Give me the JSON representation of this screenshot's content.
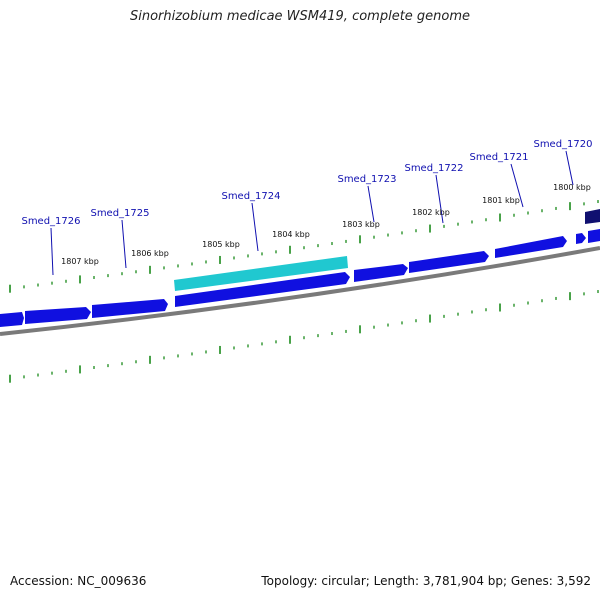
{
  "title": "Sinorhizobium medicae WSM419, complete genome",
  "accession": "Accession: NC_009636",
  "summary": "Topology: circular; Length: 3,781,904 bp; Genes: 3,592",
  "colors": {
    "gene_fill": "#1010e0",
    "gene_highlight": "#20c8d0",
    "gene_dark": "#101070",
    "backbone": "#7a7a7a",
    "tick": "#1a8a1a",
    "label": "#1010b0"
  },
  "scale": {
    "unit": "kbp",
    "ticks": [
      {
        "label": "1800 kbp"
      },
      {
        "label": "1801 kbp"
      },
      {
        "label": "1802 kbp"
      },
      {
        "label": "1803 kbp"
      },
      {
        "label": "1804 kbp"
      },
      {
        "label": "1805 kbp"
      },
      {
        "label": "1806 kbp"
      },
      {
        "label": "1807 kbp"
      }
    ]
  },
  "gene_labels": [
    {
      "name": "Smed_1720"
    },
    {
      "name": "Smed_1721"
    },
    {
      "name": "Smed_1722"
    },
    {
      "name": "Smed_1723"
    },
    {
      "name": "Smed_1724"
    },
    {
      "name": "Smed_1725"
    },
    {
      "name": "Smed_1726"
    }
  ]
}
